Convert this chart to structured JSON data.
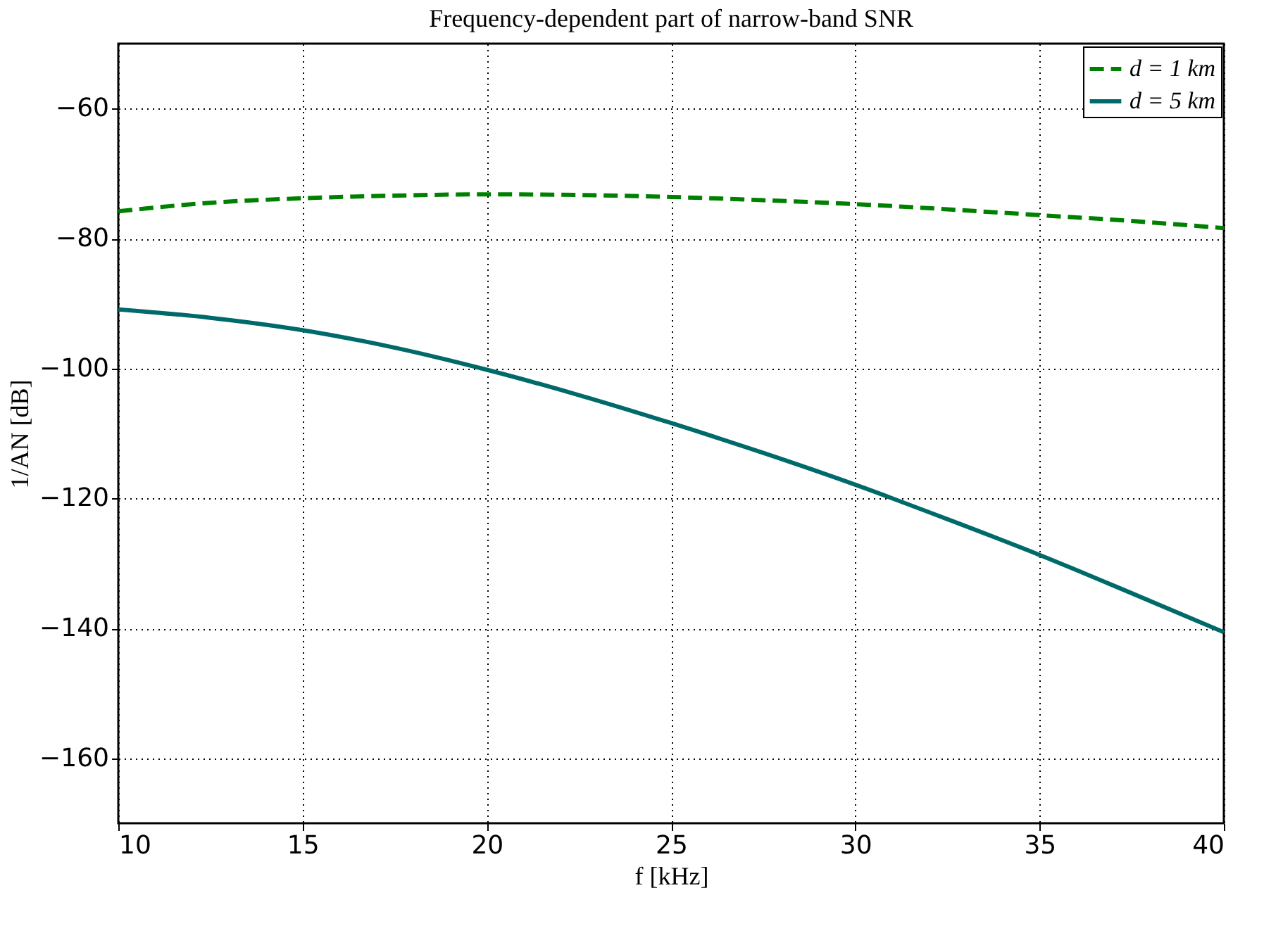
{
  "chart_data": {
    "type": "line",
    "title": "Frequency-dependent part of narrow-band SNR",
    "xlabel": "f [kHz]",
    "ylabel": "1/AN [dB]",
    "x": [
      10,
      12.5,
      15,
      17.5,
      20,
      22.5,
      25,
      27.5,
      30,
      32.5,
      35,
      37.5,
      40
    ],
    "series": [
      {
        "name": "d = 1 km",
        "color": "#008000",
        "line_style": "dashed",
        "values": [
          -75.8,
          -74.5,
          -73.8,
          -73.4,
          -73.2,
          -73.3,
          -73.6,
          -74.1,
          -74.7,
          -75.5,
          -76.4,
          -77.3,
          -78.4
        ]
      },
      {
        "name": "d = 5 km",
        "color": "#006a6a",
        "line_style": "solid",
        "values": [
          -90.9,
          -92.2,
          -94.1,
          -96.8,
          -100.2,
          -104.1,
          -108.4,
          -113.0,
          -117.9,
          -123.2,
          -128.7,
          -134.6,
          -140.6
        ]
      }
    ],
    "xlim": [
      10,
      40
    ],
    "xticks": [
      10,
      15,
      20,
      25,
      30,
      35,
      40
    ],
    "ylim": [
      -170,
      -50
    ],
    "yticks": [
      -160,
      -140,
      -120,
      -100,
      -80,
      -60
    ],
    "grid": true,
    "legend": "top right",
    "marker": "none"
  }
}
